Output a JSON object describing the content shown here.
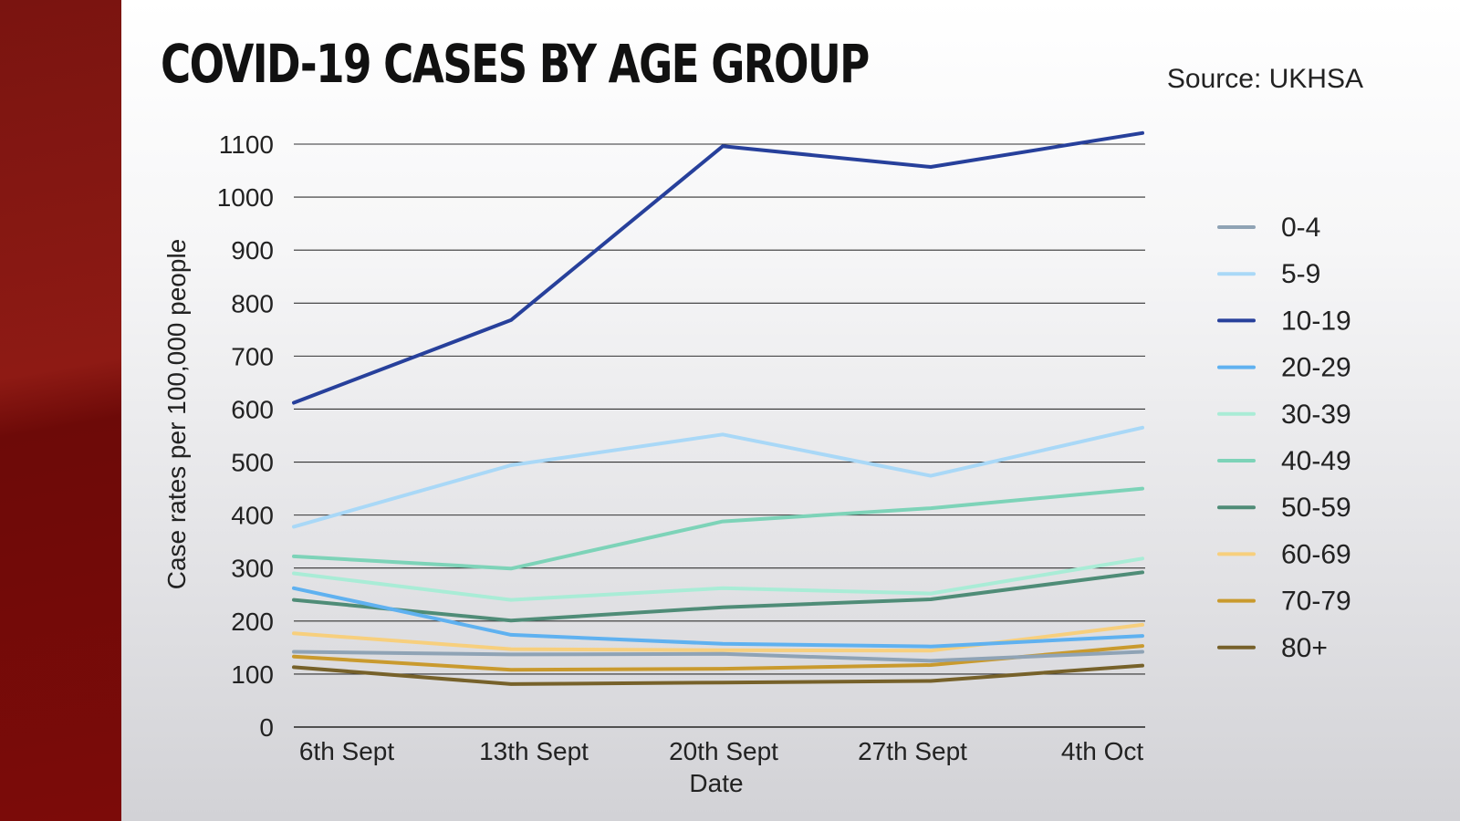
{
  "title": "COVID-19 CASES BY AGE GROUP",
  "source": "Source: UKHSA",
  "chart_data": {
    "type": "line",
    "title": "COVID-19 CASES BY AGE GROUP",
    "xlabel": "Date",
    "ylabel": "Case rates per 100,000 people",
    "ylim": [
      0,
      1100
    ],
    "yticks": [
      0,
      100,
      200,
      300,
      400,
      500,
      600,
      700,
      800,
      900,
      1000,
      1100
    ],
    "categories": [
      "6th Sept",
      "13th Sept",
      "20th Sept",
      "27th Sept",
      "4th Oct"
    ],
    "grid": "horizontal",
    "legend_position": "right",
    "series": [
      {
        "name": "0-4",
        "color": "#8fa3b5",
        "values": [
          142,
          137,
          138,
          125,
          142
        ]
      },
      {
        "name": "5-9",
        "color": "#a9d8f7",
        "values": [
          378,
          494,
          552,
          474,
          565
        ]
      },
      {
        "name": "10-19",
        "color": "#27409b",
        "values": [
          612,
          768,
          1096,
          1057,
          1121
        ]
      },
      {
        "name": "20-29",
        "color": "#5fb1f0",
        "values": [
          262,
          174,
          157,
          152,
          172
        ]
      },
      {
        "name": "30-39",
        "color": "#a9ecd6",
        "values": [
          290,
          240,
          262,
          252,
          318
        ]
      },
      {
        "name": "40-49",
        "color": "#7dd3b8",
        "values": [
          322,
          299,
          388,
          413,
          450
        ]
      },
      {
        "name": "50-59",
        "color": "#4f8c77",
        "values": [
          240,
          201,
          226,
          241,
          292
        ]
      },
      {
        "name": "60-69",
        "color": "#f7cf7d",
        "values": [
          177,
          147,
          145,
          144,
          193
        ]
      },
      {
        "name": "70-79",
        "color": "#c99a2e",
        "values": [
          133,
          108,
          110,
          117,
          153
        ]
      },
      {
        "name": "80+",
        "color": "#76612a",
        "values": [
          113,
          81,
          84,
          87,
          116
        ]
      }
    ]
  }
}
